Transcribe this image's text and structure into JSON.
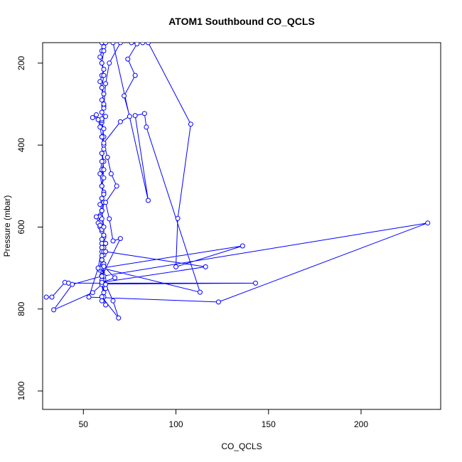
{
  "chart_data": {
    "type": "line",
    "title": "ATOM1 Southbound CO_QCLS",
    "xlabel": "CO_QCLS",
    "ylabel": "Pressure (mbar)",
    "xlim": [
      28,
      243
    ],
    "ylim": [
      1045,
      150
    ],
    "y_reversed": true,
    "grid": false,
    "series_color": "#0000ff",
    "x_ticks": [
      50,
      100,
      150,
      200
    ],
    "x_tick_labels": [
      "50",
      "100",
      "150",
      "200"
    ],
    "y_ticks": [
      200,
      400,
      600,
      800,
      1000
    ],
    "y_tick_labels": [
      "200",
      "400",
      "600",
      "800",
      "1000"
    ],
    "series": [
      {
        "values_xy": [
          [
            30,
            771
          ],
          [
            33,
            771
          ],
          [
            40,
            735
          ],
          [
            42,
            737
          ],
          [
            143,
            737
          ],
          [
            60,
            739
          ],
          [
            61,
            728
          ],
          [
            60,
            718
          ],
          [
            59,
            705
          ],
          [
            60,
            697
          ],
          [
            61,
            690
          ],
          [
            60,
            680
          ],
          [
            61,
            668
          ],
          [
            60,
            650
          ],
          [
            62,
            640
          ],
          [
            61,
            625
          ],
          [
            60,
            610
          ],
          [
            59,
            600
          ],
          [
            58,
            590
          ],
          [
            59,
            575
          ],
          [
            60,
            560
          ],
          [
            59,
            545
          ],
          [
            60,
            530
          ],
          [
            61,
            515
          ],
          [
            60,
            500
          ],
          [
            61,
            480
          ],
          [
            60,
            460
          ],
          [
            61,
            440
          ],
          [
            60,
            420
          ],
          [
            61,
            400
          ],
          [
            60,
            380
          ],
          [
            61,
            360
          ],
          [
            60,
            345
          ],
          [
            62,
            330
          ],
          [
            60,
            320
          ],
          [
            61,
            305
          ],
          [
            60,
            290
          ],
          [
            61,
            275
          ],
          [
            60,
            260
          ],
          [
            59,
            245
          ],
          [
            60,
            230
          ],
          [
            61,
            215
          ],
          [
            60,
            200
          ],
          [
            59,
            185
          ],
          [
            60,
            170
          ],
          [
            61,
            160
          ],
          [
            60,
            150
          ],
          [
            62,
            150
          ],
          [
            61,
            170
          ],
          [
            60,
            200
          ],
          [
            61,
            230
          ],
          [
            60,
            260
          ],
          [
            61,
            300
          ],
          [
            60,
            340
          ],
          [
            61,
            380
          ],
          [
            60,
            420
          ],
          [
            61,
            460
          ],
          [
            60,
            500
          ],
          [
            61,
            540
          ],
          [
            60,
            580
          ],
          [
            61,
            620
          ],
          [
            60,
            660
          ],
          [
            61,
            700
          ],
          [
            60,
            730
          ],
          [
            61,
            760
          ],
          [
            60,
            780
          ],
          [
            62,
            790
          ],
          [
            61,
            770
          ],
          [
            60,
            740
          ],
          [
            55,
            760
          ],
          [
            34,
            802
          ],
          [
            44,
            740
          ],
          [
            60,
            720
          ],
          [
            70,
            628
          ],
          [
            66,
            634
          ],
          [
            64,
            580
          ],
          [
            62,
            540
          ],
          [
            68,
            500
          ],
          [
            65,
            470
          ],
          [
            63,
            430
          ],
          [
            61,
            395
          ],
          [
            70,
            343
          ],
          [
            75,
            330
          ],
          [
            72,
            280
          ],
          [
            78,
            230
          ],
          [
            74,
            190
          ],
          [
            79,
            153
          ],
          [
            76,
            150
          ],
          [
            82,
            150
          ],
          [
            85,
            150
          ],
          [
            108,
            349
          ],
          [
            101,
            579
          ],
          [
            100,
            697
          ],
          [
            136,
            646
          ],
          [
            60,
            700
          ],
          [
            61,
            690
          ],
          [
            62,
            750
          ],
          [
            60,
            770
          ],
          [
            69,
            822
          ],
          [
            66,
            780
          ],
          [
            62,
            740
          ],
          [
            61,
            720
          ],
          [
            60,
            700
          ],
          [
            113,
            759
          ],
          [
            84,
            356
          ],
          [
            83,
            323
          ],
          [
            78,
            328
          ],
          [
            85,
            535
          ],
          [
            66,
            150
          ],
          [
            70,
            150
          ],
          [
            64,
            200
          ],
          [
            62,
            250
          ],
          [
            61,
            310
          ],
          [
            60,
            336
          ],
          [
            55,
            333
          ],
          [
            57,
            326
          ],
          [
            58,
            338
          ],
          [
            59,
            356
          ],
          [
            60,
            380
          ],
          [
            61,
            410
          ],
          [
            60,
            440
          ],
          [
            59,
            470
          ],
          [
            60,
            500
          ],
          [
            61,
            520
          ],
          [
            60,
            560
          ],
          [
            57,
            575
          ],
          [
            59,
            596
          ],
          [
            60,
            606
          ],
          [
            61,
            620
          ],
          [
            60,
            640
          ],
          [
            61,
            660
          ],
          [
            60,
            680
          ],
          [
            61,
            696
          ],
          [
            67,
            724
          ],
          [
            60,
            735
          ],
          [
            116,
            697
          ],
          [
            62,
            660
          ],
          [
            61,
            650
          ],
          [
            60,
            630
          ],
          [
            62,
            640
          ],
          [
            60,
            670
          ],
          [
            59,
            700
          ],
          [
            60,
            720
          ],
          [
            236,
            590
          ],
          [
            123,
            783
          ],
          [
            53,
            771
          ],
          [
            58,
            700
          ],
          [
            60,
            650
          ],
          [
            61,
            600
          ],
          [
            60,
            560
          ],
          [
            61,
            520
          ]
        ]
      }
    ]
  }
}
